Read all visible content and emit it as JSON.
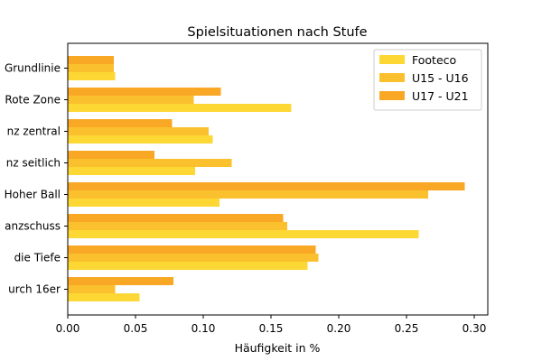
{
  "chart_data": {
    "type": "bar",
    "orientation": "horizontal",
    "title": "Spielsituationen nach Stufe",
    "xlabel": "Häufigkeit in %",
    "ylabel": "",
    "xlim": [
      0,
      0.31
    ],
    "xticks": [
      "0.00",
      "0.05",
      "0.10",
      "0.15",
      "0.20",
      "0.25",
      "0.30"
    ],
    "xtick_values": [
      0,
      0.05,
      0.1,
      0.15,
      0.2,
      0.25,
      0.3
    ],
    "categories": [
      "Grundlinie",
      "Rote Zone",
      "nz zentral",
      "nz seitlich",
      "Hoher Ball",
      "anzschuss",
      " die Tiefe",
      "urch 16er"
    ],
    "series": [
      {
        "name": "Footeco",
        "color": "#fdd835",
        "values": [
          0.035,
          0.165,
          0.107,
          0.094,
          0.112,
          0.259,
          0.177,
          0.053
        ]
      },
      {
        "name": "U15 - U16",
        "color": "#fbc02d",
        "values": [
          0.034,
          0.093,
          0.104,
          0.121,
          0.266,
          0.162,
          0.185,
          0.035
        ]
      },
      {
        "name": "U17 - U21",
        "color": "#f9a825",
        "values": [
          0.034,
          0.113,
          0.077,
          0.064,
          0.293,
          0.159,
          0.183,
          0.078
        ]
      }
    ],
    "legend_position": "top-right",
    "grid": false
  }
}
